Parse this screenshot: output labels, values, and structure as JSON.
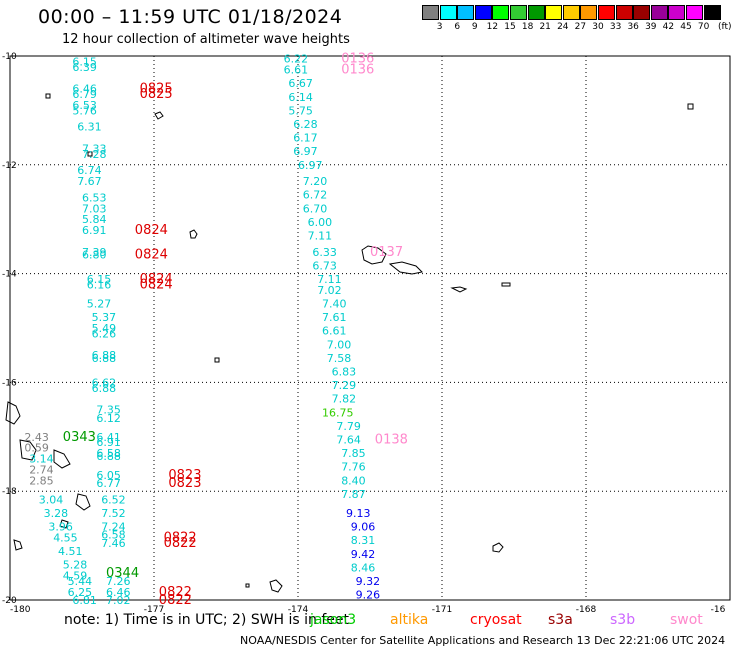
{
  "title": "00:00 – 11:59 UTC 01/18/2024",
  "subtitle": "12 hour collection of altimeter wave heights",
  "color_scale": {
    "colors": [
      "#808080",
      "#00ffff",
      "#00bfff",
      "#0000ff",
      "#00ff00",
      "#33cc33",
      "#009900",
      "#ffff00",
      "#ffcc00",
      "#ff9900",
      "#ff0000",
      "#cc0000",
      "#990000",
      "#990099",
      "#cc00cc",
      "#ff00ff",
      "#000000"
    ],
    "labels": [
      "3",
      "6",
      "9",
      "12",
      "15",
      "18",
      "21",
      "24",
      "27",
      "30",
      "33",
      "36",
      "39",
      "42",
      "45",
      "70"
    ],
    "unit": "(ft)"
  },
  "axes": {
    "lon_labels": [
      "-180",
      "-177",
      "-174",
      "-171",
      "-168",
      "-16"
    ],
    "lat_labels": [
      "-10",
      "-12",
      "-14",
      "-16",
      "-18",
      "-20"
    ]
  },
  "note": "note: 1) Time is in UTC; 2) SWH is in feet",
  "missions": [
    {
      "name": "jason3",
      "color": "#00cc00"
    },
    {
      "name": "altika",
      "color": "#ff9900"
    },
    {
      "name": "cryosat",
      "color": "#ff0000"
    },
    {
      "name": "s3a",
      "color": "#990000"
    },
    {
      "name": "s3b",
      "color": "#cc66ff"
    },
    {
      "name": "swot",
      "color": "#ff88cc"
    }
  ],
  "credit": "NOAA/NESDIS Center for Satellite Applications and Research    13 Dec 22:21:06 UTC 2024",
  "observations": [
    {
      "lon": -178.7,
      "lat": -10.1,
      "v": "6.15",
      "c": "#00cccc"
    },
    {
      "lon": -178.7,
      "lat": -10.2,
      "v": "6.39",
      "c": "#00cccc"
    },
    {
      "lon": -178.7,
      "lat": -10.6,
      "v": "6.46",
      "c": "#00cccc"
    },
    {
      "lon": -178.7,
      "lat": -10.7,
      "v": "6.79",
      "c": "#00cccc"
    },
    {
      "lon": -178.7,
      "lat": -10.9,
      "v": "6.53",
      "c": "#00cccc"
    },
    {
      "lon": -178.7,
      "lat": -11.0,
      "v": "5.76",
      "c": "#00cccc"
    },
    {
      "lon": -178.6,
      "lat": -11.3,
      "v": "6.31",
      "c": "#00cccc"
    },
    {
      "lon": -178.5,
      "lat": -11.7,
      "v": "7.33",
      "c": "#00cccc"
    },
    {
      "lon": -178.5,
      "lat": -11.8,
      "v": "7.28",
      "c": "#00cccc"
    },
    {
      "lon": -178.6,
      "lat": -12.1,
      "v": "6.74",
      "c": "#00cccc"
    },
    {
      "lon": -178.6,
      "lat": -12.3,
      "v": "7.67",
      "c": "#00cccc"
    },
    {
      "lon": -178.5,
      "lat": -12.6,
      "v": "6.53",
      "c": "#00cccc"
    },
    {
      "lon": -178.5,
      "lat": -12.8,
      "v": "7.03",
      "c": "#00cccc"
    },
    {
      "lon": -178.5,
      "lat": -13.0,
      "v": "5.84",
      "c": "#00cccc"
    },
    {
      "lon": -178.5,
      "lat": -13.2,
      "v": "6.91",
      "c": "#00cccc"
    },
    {
      "lon": -178.5,
      "lat": -13.6,
      "v": "7.39",
      "c": "#00cccc"
    },
    {
      "lon": -178.5,
      "lat": -13.65,
      "v": "6.80",
      "c": "#00cccc"
    },
    {
      "lon": -178.4,
      "lat": -14.1,
      "v": "6.15",
      "c": "#00cccc"
    },
    {
      "lon": -178.4,
      "lat": -14.2,
      "v": "6.16",
      "c": "#00cccc"
    },
    {
      "lon": -178.4,
      "lat": -14.55,
      "v": "5.27",
      "c": "#00cccc"
    },
    {
      "lon": -178.3,
      "lat": -14.8,
      "v": "5.37",
      "c": "#00cccc"
    },
    {
      "lon": -178.3,
      "lat": -15.0,
      "v": "5.49",
      "c": "#00cccc"
    },
    {
      "lon": -178.3,
      "lat": -15.1,
      "v": "6.26",
      "c": "#00cccc"
    },
    {
      "lon": -178.3,
      "lat": -15.5,
      "v": "6.88",
      "c": "#00cccc"
    },
    {
      "lon": -178.3,
      "lat": -15.55,
      "v": "6.88",
      "c": "#00cccc"
    },
    {
      "lon": -178.3,
      "lat": -16.0,
      "v": "6.62",
      "c": "#00cccc"
    },
    {
      "lon": -178.3,
      "lat": -16.1,
      "v": "6.88",
      "c": "#00cccc"
    },
    {
      "lon": -178.2,
      "lat": -16.5,
      "v": "7.35",
      "c": "#00cccc"
    },
    {
      "lon": -178.2,
      "lat": -16.65,
      "v": "6.12",
      "c": "#00cccc"
    },
    {
      "lon": -178.2,
      "lat": -17.0,
      "v": "6.41",
      "c": "#00cccc"
    },
    {
      "lon": -178.2,
      "lat": -17.1,
      "v": "6.91",
      "c": "#00cccc"
    },
    {
      "lon": -178.2,
      "lat": -17.3,
      "v": "6.58",
      "c": "#00cccc"
    },
    {
      "lon": -178.2,
      "lat": -17.35,
      "v": "6.88",
      "c": "#00cccc"
    },
    {
      "lon": -178.2,
      "lat": -17.7,
      "v": "6.05",
      "c": "#00cccc"
    },
    {
      "lon": -178.2,
      "lat": -17.85,
      "v": "6.77",
      "c": "#00cccc"
    },
    {
      "lon": -178.1,
      "lat": -18.15,
      "v": "6.52",
      "c": "#00cccc"
    },
    {
      "lon": -178.1,
      "lat": -18.4,
      "v": "7.52",
      "c": "#00cccc"
    },
    {
      "lon": -178.1,
      "lat": -18.65,
      "v": "7.24",
      "c": "#00cccc"
    },
    {
      "lon": -178.1,
      "lat": -18.8,
      "v": "6.58",
      "c": "#00cccc"
    },
    {
      "lon": -178.1,
      "lat": -18.95,
      "v": "7.46",
      "c": "#00cccc"
    },
    {
      "lon": -178.0,
      "lat": -19.65,
      "v": "7.26",
      "c": "#00cccc"
    },
    {
      "lon": -178.0,
      "lat": -19.85,
      "v": "6.46",
      "c": "#00cccc"
    },
    {
      "lon": -178.0,
      "lat": -20.0,
      "v": "7.02",
      "c": "#00cccc"
    },
    {
      "lon": -177.3,
      "lat": -10.6,
      "v": "0825",
      "c": "#dd0000"
    },
    {
      "lon": -177.3,
      "lat": -10.7,
      "v": "0825",
      "c": "#dd0000"
    },
    {
      "lon": -177.4,
      "lat": -13.2,
      "v": "0824",
      "c": "#dd0000"
    },
    {
      "lon": -177.4,
      "lat": -13.65,
      "v": "0824",
      "c": "#dd0000"
    },
    {
      "lon": -177.3,
      "lat": -14.1,
      "v": "0824",
      "c": "#dd0000"
    },
    {
      "lon": -177.3,
      "lat": -14.2,
      "v": "0824",
      "c": "#dd0000"
    },
    {
      "lon": -176.7,
      "lat": -17.7,
      "v": "0823",
      "c": "#dd0000"
    },
    {
      "lon": -176.7,
      "lat": -17.85,
      "v": "0823",
      "c": "#dd0000"
    },
    {
      "lon": -176.8,
      "lat": -18.85,
      "v": "0822",
      "c": "#dd0000"
    },
    {
      "lon": -176.8,
      "lat": -18.95,
      "v": "0822",
      "c": "#dd0000"
    },
    {
      "lon": -176.9,
      "lat": -19.85,
      "v": "0822",
      "c": "#dd0000"
    },
    {
      "lon": -176.9,
      "lat": -20.0,
      "v": "0822",
      "c": "#dd0000"
    },
    {
      "lon": -179.7,
      "lat": -17.0,
      "v": "2.43",
      "c": "#808080"
    },
    {
      "lon": -179.7,
      "lat": -17.2,
      "v": "0.59",
      "c": "#808080"
    },
    {
      "lon": -179.6,
      "lat": -17.6,
      "v": "2.74",
      "c": "#808080"
    },
    {
      "lon": -179.6,
      "lat": -17.8,
      "v": "2.85",
      "c": "#808080"
    },
    {
      "lon": -179.6,
      "lat": -17.4,
      "v": "3.14",
      "c": "#00cccc"
    },
    {
      "lon": -179.4,
      "lat": -18.15,
      "v": "3.04",
      "c": "#00cccc"
    },
    {
      "lon": -179.3,
      "lat": -18.4,
      "v": "3.28",
      "c": "#00cccc"
    },
    {
      "lon": -179.2,
      "lat": -18.65,
      "v": "3.96",
      "c": "#00cccc"
    },
    {
      "lon": -179.1,
      "lat": -18.85,
      "v": "4.55",
      "c": "#00cccc"
    },
    {
      "lon": -179.0,
      "lat": -19.1,
      "v": "4.51",
      "c": "#00cccc"
    },
    {
      "lon": -178.9,
      "lat": -19.35,
      "v": "5.28",
      "c": "#00cccc"
    },
    {
      "lon": -178.9,
      "lat": -19.55,
      "v": "4.59",
      "c": "#00cccc"
    },
    {
      "lon": -178.8,
      "lat": -19.65,
      "v": "5.44",
      "c": "#00cccc"
    },
    {
      "lon": -178.8,
      "lat": -19.85,
      "v": "6.25",
      "c": "#00cccc"
    },
    {
      "lon": -178.7,
      "lat": -20.0,
      "v": "6.81",
      "c": "#00cccc"
    },
    {
      "lon": -178.9,
      "lat": -17.0,
      "v": "0343",
      "c": "#009900"
    },
    {
      "lon": -178.0,
      "lat": -19.5,
      "v": "0344",
      "c": "#009900"
    },
    {
      "lon": -174.3,
      "lat": -10.05,
      "v": "6.22",
      "c": "#00cccc"
    },
    {
      "lon": -174.3,
      "lat": -10.25,
      "v": "6.61",
      "c": "#00cccc"
    },
    {
      "lon": -174.2,
      "lat": -10.5,
      "v": "6.67",
      "c": "#00cccc"
    },
    {
      "lon": -174.2,
      "lat": -10.75,
      "v": "6.14",
      "c": "#00cccc"
    },
    {
      "lon": -174.2,
      "lat": -11.0,
      "v": "5.75",
      "c": "#00cccc"
    },
    {
      "lon": -174.1,
      "lat": -11.25,
      "v": "6.28",
      "c": "#00cccc"
    },
    {
      "lon": -174.1,
      "lat": -11.5,
      "v": "6.17",
      "c": "#00cccc"
    },
    {
      "lon": -174.1,
      "lat": -11.75,
      "v": "6.97",
      "c": "#00cccc"
    },
    {
      "lon": -174.0,
      "lat": -12.0,
      "v": "6.97",
      "c": "#00cccc"
    },
    {
      "lon": -173.9,
      "lat": -12.3,
      "v": "7.20",
      "c": "#00cccc"
    },
    {
      "lon": -173.9,
      "lat": -12.55,
      "v": "6.72",
      "c": "#00cccc"
    },
    {
      "lon": -173.9,
      "lat": -12.8,
      "v": "6.70",
      "c": "#00cccc"
    },
    {
      "lon": -173.8,
      "lat": -13.05,
      "v": "6.00",
      "c": "#00cccc"
    },
    {
      "lon": -173.8,
      "lat": -13.3,
      "v": "7.11",
      "c": "#00cccc"
    },
    {
      "lon": -173.7,
      "lat": -13.6,
      "v": "6.33",
      "c": "#00cccc"
    },
    {
      "lon": -173.7,
      "lat": -13.85,
      "v": "6.73",
      "c": "#00cccc"
    },
    {
      "lon": -173.6,
      "lat": -14.1,
      "v": "7.11",
      "c": "#00cccc"
    },
    {
      "lon": -173.6,
      "lat": -14.3,
      "v": "7.02",
      "c": "#00cccc"
    },
    {
      "lon": -173.5,
      "lat": -14.55,
      "v": "7.40",
      "c": "#00cccc"
    },
    {
      "lon": -173.5,
      "lat": -14.8,
      "v": "7.61",
      "c": "#00cccc"
    },
    {
      "lon": -173.5,
      "lat": -15.05,
      "v": "6.61",
      "c": "#00cccc"
    },
    {
      "lon": -173.4,
      "lat": -15.3,
      "v": "7.00",
      "c": "#00cccc"
    },
    {
      "lon": -173.4,
      "lat": -15.55,
      "v": "7.58",
      "c": "#00cccc"
    },
    {
      "lon": -173.3,
      "lat": -15.8,
      "v": "6.83",
      "c": "#00cccc"
    },
    {
      "lon": -173.3,
      "lat": -16.05,
      "v": "7.29",
      "c": "#00cccc"
    },
    {
      "lon": -173.3,
      "lat": -16.3,
      "v": "7.82",
      "c": "#00cccc"
    },
    {
      "lon": -173.5,
      "lat": -16.55,
      "v": "16.75",
      "c": "#33cc00"
    },
    {
      "lon": -173.2,
      "lat": -16.8,
      "v": "7.79",
      "c": "#00cccc"
    },
    {
      "lon": -173.2,
      "lat": -17.05,
      "v": "7.64",
      "c": "#00cccc"
    },
    {
      "lon": -173.1,
      "lat": -17.3,
      "v": "7.85",
      "c": "#00cccc"
    },
    {
      "lon": -173.1,
      "lat": -17.55,
      "v": "7.76",
      "c": "#00cccc"
    },
    {
      "lon": -173.1,
      "lat": -17.8,
      "v": "8.40",
      "c": "#00cccc"
    },
    {
      "lon": -173.1,
      "lat": -18.05,
      "v": "7.87",
      "c": "#00cccc"
    },
    {
      "lon": -173.0,
      "lat": -18.4,
      "v": "9.13",
      "c": "#0000ee"
    },
    {
      "lon": -172.9,
      "lat": -18.65,
      "v": "9.06",
      "c": "#0000ee"
    },
    {
      "lon": -172.9,
      "lat": -18.9,
      "v": "8.31",
      "c": "#00cccc"
    },
    {
      "lon": -172.9,
      "lat": -19.15,
      "v": "9.42",
      "c": "#0000ee"
    },
    {
      "lon": -172.9,
      "lat": -19.4,
      "v": "8.46",
      "c": "#00cccc"
    },
    {
      "lon": -172.8,
      "lat": -19.65,
      "v": "9.32",
      "c": "#0000ee"
    },
    {
      "lon": -172.8,
      "lat": -19.9,
      "v": "9.26",
      "c": "#0000ee"
    },
    {
      "lon": -173.1,
      "lat": -10.05,
      "v": "0136",
      "c": "#ff88cc"
    },
    {
      "lon": -173.1,
      "lat": -10.25,
      "v": "0136",
      "c": "#ff88cc"
    },
    {
      "lon": -172.5,
      "lat": -13.6,
      "v": "0137",
      "c": "#ff88cc"
    },
    {
      "lon": -172.4,
      "lat": -17.05,
      "v": "0138",
      "c": "#ff88cc"
    }
  ]
}
